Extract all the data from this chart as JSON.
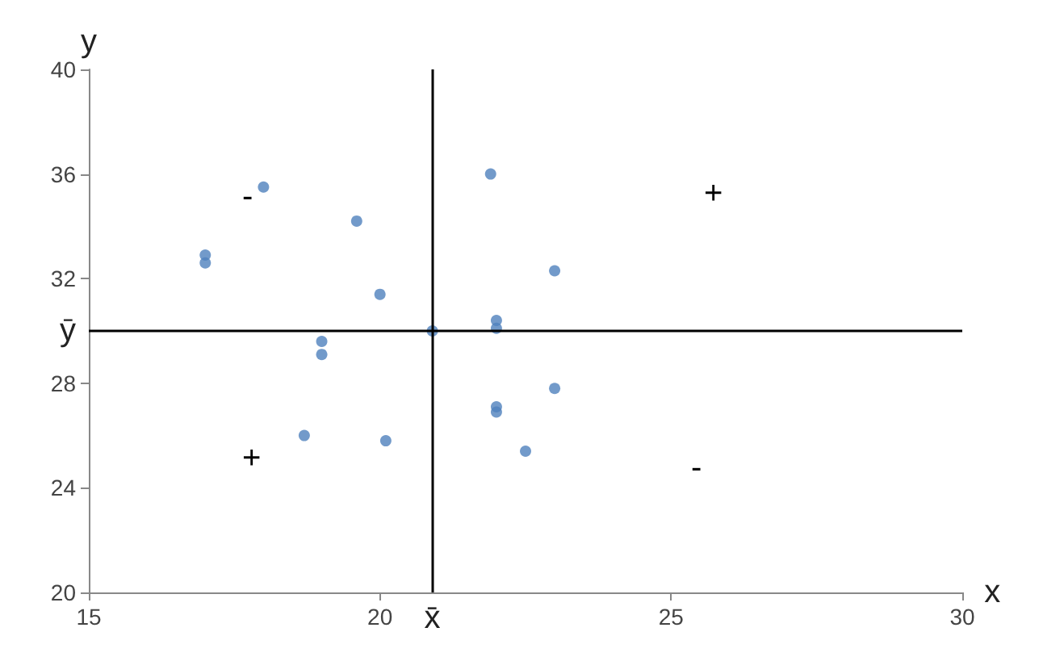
{
  "chart_data": {
    "type": "scatter",
    "xlabel": "x",
    "ylabel": "y",
    "x": [
      17,
      17,
      18,
      19.6,
      20,
      19,
      19,
      18.7,
      20.1,
      20.9,
      21.9,
      22,
      22,
      23,
      22,
      22,
      23,
      22.5
    ],
    "values": [
      32.9,
      32.6,
      35.5,
      34.2,
      31.4,
      29.6,
      29.1,
      26,
      25.8,
      30,
      36,
      30.4,
      30.1,
      32.3,
      27.1,
      26.9,
      27.8,
      25.4
    ],
    "color": "#4f81bd",
    "marker": "circle",
    "xlim": [
      15,
      30
    ],
    "xticks": [
      15,
      20,
      25,
      30
    ],
    "ylim": [
      20,
      40
    ],
    "yticks": [
      20,
      24,
      28,
      32,
      36,
      40
    ],
    "grid": false,
    "ref_lines": [
      {
        "axis": "x",
        "value": 20.9,
        "label": "x̄",
        "color": "#000000"
      },
      {
        "axis": "y",
        "value": 30,
        "label": "ȳ",
        "color": "#000000"
      }
    ],
    "annotations": [
      "-",
      "+",
      "+",
      "-"
    ]
  }
}
